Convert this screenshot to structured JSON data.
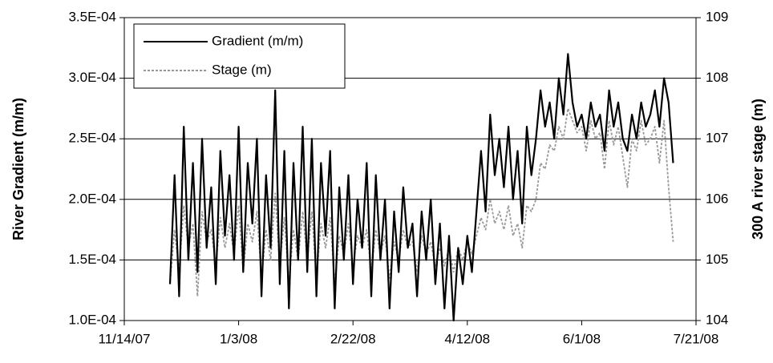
{
  "chart_data": {
    "type": "line",
    "y_label": "River Gradient (m/m)",
    "y2_label": "300 A river stage (m)",
    "legend": "upper left",
    "grid": true,
    "xlim": [
      "11/14/07",
      "7/21/08"
    ],
    "xticks": [
      "11/14/07",
      "1/3/08",
      "2/22/08",
      "4/12/08",
      "6/1/08",
      "7/21/08"
    ],
    "ylim": [
      0.0001,
      0.00035
    ],
    "yticks": [
      {
        "value": 0.0001,
        "label": "1.0E-04"
      },
      {
        "value": 0.00015,
        "label": "1.5E-04"
      },
      {
        "value": 0.0002,
        "label": "2.0E-04"
      },
      {
        "value": 0.00025,
        "label": "2.5E-04"
      },
      {
        "value": 0.0003,
        "label": "3.0E-04"
      },
      {
        "value": 0.00035,
        "label": "3.5E-04"
      }
    ],
    "y2lim": [
      104,
      109
    ],
    "y2ticks": [
      104,
      105,
      106,
      107,
      108,
      109
    ],
    "x": [
      "12/4/07",
      "12/6/07",
      "12/8/07",
      "12/10/07",
      "12/12/07",
      "12/14/07",
      "12/16/07",
      "12/18/07",
      "12/20/07",
      "12/22/07",
      "12/24/07",
      "12/26/07",
      "12/28/07",
      "12/30/07",
      "1/1/08",
      "1/3/08",
      "1/5/08",
      "1/7/08",
      "1/9/08",
      "1/11/08",
      "1/13/08",
      "1/15/08",
      "1/17/08",
      "1/19/08",
      "1/21/08",
      "1/23/08",
      "1/25/08",
      "1/27/08",
      "1/29/08",
      "1/31/08",
      "2/2/08",
      "2/4/08",
      "2/6/08",
      "2/8/08",
      "2/10/08",
      "2/12/08",
      "2/14/08",
      "2/16/08",
      "2/18/08",
      "2/20/08",
      "2/22/08",
      "2/24/08",
      "2/26/08",
      "2/28/08",
      "3/1/08",
      "3/3/08",
      "3/5/08",
      "3/7/08",
      "3/9/08",
      "3/11/08",
      "3/13/08",
      "3/15/08",
      "3/17/08",
      "3/19/08",
      "3/21/08",
      "3/23/08",
      "3/25/08",
      "3/27/08",
      "3/29/08",
      "3/31/08",
      "4/2/08",
      "4/4/08",
      "4/6/08",
      "4/8/08",
      "4/10/08",
      "4/12/08",
      "4/14/08",
      "4/16/08",
      "4/18/08",
      "4/20/08",
      "4/22/08",
      "4/24/08",
      "4/26/08",
      "4/28/08",
      "4/30/08",
      "5/2/08",
      "5/4/08",
      "5/6/08",
      "5/8/08",
      "5/10/08",
      "5/12/08",
      "5/14/08",
      "5/16/08",
      "5/18/08",
      "5/20/08",
      "5/22/08",
      "5/24/08",
      "5/26/08",
      "5/28/08",
      "5/30/08",
      "6/1/08",
      "6/3/08",
      "6/5/08",
      "6/7/08",
      "6/9/08",
      "6/11/08",
      "6/13/08",
      "6/15/08",
      "6/17/08",
      "6/19/08",
      "6/21/08",
      "6/23/08",
      "6/25/08",
      "6/27/08",
      "6/29/08",
      "7/1/08",
      "7/3/08",
      "7/5/08",
      "7/7/08",
      "7/9/08",
      "7/11/08"
    ],
    "series": [
      {
        "name": "Gradient (m/m)",
        "color": "#000000",
        "dashed": false,
        "values": [
          0.00013,
          0.00022,
          0.00012,
          0.00026,
          0.00015,
          0.00023,
          0.00014,
          0.00025,
          0.00016,
          0.00021,
          0.00013,
          0.00024,
          0.00017,
          0.00022,
          0.00015,
          0.00026,
          0.00014,
          0.00023,
          0.00018,
          0.00025,
          0.00012,
          0.00022,
          0.00016,
          0.00029,
          0.00013,
          0.00024,
          0.00011,
          0.00023,
          0.00015,
          0.00026,
          0.00014,
          0.00025,
          0.00012,
          0.00023,
          0.00017,
          0.00024,
          0.00011,
          0.00021,
          0.00015,
          0.00022,
          0.00013,
          0.0002,
          0.00016,
          0.00023,
          0.00012,
          0.00022,
          0.00015,
          0.0002,
          0.00011,
          0.00019,
          0.00014,
          0.00021,
          0.00016,
          0.00018,
          0.00012,
          0.00019,
          0.00015,
          0.0002,
          0.00013,
          0.00018,
          0.00011,
          0.00017,
          0.0001,
          0.00016,
          0.00013,
          0.00017,
          0.00014,
          0.00019,
          0.00024,
          0.00019,
          0.00027,
          0.00022,
          0.00025,
          0.00021,
          0.00026,
          0.0002,
          0.00024,
          0.00018,
          0.00026,
          0.00022,
          0.00025,
          0.00029,
          0.00026,
          0.00028,
          0.00025,
          0.0003,
          0.00027,
          0.00032,
          0.00028,
          0.00026,
          0.00027,
          0.00025,
          0.00028,
          0.00026,
          0.00027,
          0.00024,
          0.00029,
          0.00026,
          0.00028,
          0.00025,
          0.00024,
          0.00027,
          0.00025,
          0.00028,
          0.00026,
          0.00027,
          0.00029,
          0.00026,
          0.0003,
          0.00028,
          0.00023
        ]
      },
      {
        "name": "Stage (m)",
        "color": "#999999",
        "dashed": true,
        "axis": "y2",
        "values": [
          104.6,
          105.5,
          104.8,
          105.9,
          105.2,
          105.6,
          104.4,
          105.8,
          105.3,
          105.5,
          104.9,
          105.7,
          105.2,
          105.6,
          105.1,
          105.9,
          104.8,
          105.6,
          105.3,
          105.8,
          104.7,
          105.5,
          105.0,
          106.1,
          104.9,
          105.7,
          104.6,
          105.5,
          105.0,
          105.8,
          105.0,
          105.8,
          104.7,
          105.6,
          105.2,
          105.7,
          104.6,
          105.4,
          105.1,
          105.6,
          104.9,
          105.4,
          105.2,
          105.5,
          104.8,
          105.5,
          105.1,
          105.4,
          104.7,
          105.3,
          105.0,
          105.5,
          105.2,
          105.3,
          104.8,
          105.4,
          105.1,
          105.3,
          104.9,
          105.2,
          104.9,
          105.2,
          104.8,
          105.2,
          105.0,
          105.3,
          105.1,
          105.4,
          105.7,
          105.5,
          106.0,
          105.6,
          105.8,
          105.5,
          105.9,
          105.4,
          105.6,
          105.2,
          105.9,
          105.8,
          106.0,
          106.6,
          106.5,
          106.9,
          106.8,
          107.2,
          107.0,
          107.5,
          107.3,
          107.1,
          107.2,
          106.8,
          107.3,
          107.0,
          107.1,
          106.5,
          107.3,
          106.9,
          107.2,
          106.7,
          106.2,
          107.0,
          106.8,
          107.3,
          106.9,
          107.0,
          107.2,
          106.6,
          107.3,
          106.2,
          105.3
        ]
      }
    ]
  }
}
